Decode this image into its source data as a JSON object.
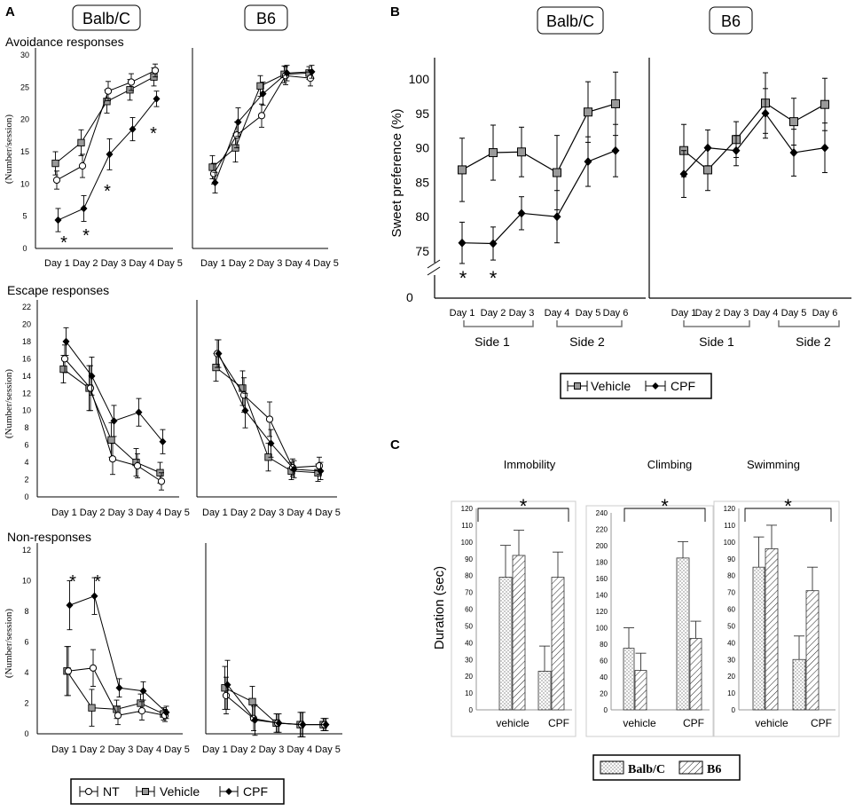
{
  "panel_labels": {
    "a": "A",
    "b": "B",
    "c": "C"
  },
  "strain_labels": {
    "balb": "Balb/C",
    "b6": "B6"
  },
  "panel_a": {
    "subtitles": [
      "Avoidance responses",
      "Escape responses",
      "Non-responses"
    ],
    "ylabel": "(Number/session)",
    "x_axis_labels": "Day 1 Day 2 Day 3 Day 4 Day 5"
  },
  "panel_b": {
    "ylabel": "Sweet preference (%)",
    "axis_break_zero": "0",
    "side_labels": [
      "Side 1",
      "Side 2"
    ]
  },
  "panel_c": {
    "ylabel": "Duration (sec)",
    "groups": [
      "vehicle",
      "CPF"
    ]
  },
  "legend_a": {
    "items": [
      "NT",
      "Vehicle",
      "CPF"
    ]
  },
  "legend_b": {
    "items": [
      "Vehicle",
      "CPF"
    ]
  },
  "legend_c": {
    "items": [
      "Balb/C",
      "B6"
    ]
  },
  "significance_mark": "*",
  "colors": {
    "vehicle_fill": "#999999",
    "line": "#000000"
  },
  "chart_data": [
    {
      "id": "A-avoid-balb",
      "type": "line",
      "title": "Avoidance responses",
      "strain": "Balb/C",
      "xlabel": "",
      "ylabel": "(Number/session)",
      "categories": [
        "Day 1",
        "Day 2",
        "Day 3",
        "Day 4",
        "Day 5"
      ],
      "ylim": [
        0,
        30
      ],
      "yticks": [
        0,
        5,
        10,
        15,
        20,
        25,
        30
      ],
      "series": [
        {
          "name": "NT",
          "values": [
            10.6,
            12.8,
            24.4,
            25.8,
            27.6
          ],
          "errors": [
            1.4,
            1.8,
            1.5,
            1.3,
            1.0
          ]
        },
        {
          "name": "Vehicle",
          "values": [
            13.2,
            16.4,
            22.8,
            24.6,
            26.6
          ],
          "errors": [
            1.8,
            2.0,
            1.8,
            1.6,
            1.4
          ]
        },
        {
          "name": "CPF",
          "values": [
            4.4,
            6.2,
            14.6,
            18.5,
            23.2
          ],
          "errors": [
            1.8,
            2.0,
            2.4,
            1.8,
            1.2
          ]
        }
      ],
      "significance": [
        "Day 1",
        "Day 2",
        "Day 3",
        "Day 5"
      ]
    },
    {
      "id": "A-avoid-b6",
      "type": "line",
      "title": "Avoidance responses",
      "strain": "B6",
      "xlabel": "",
      "ylabel": "(Number/session)",
      "categories": [
        "Day 1",
        "Day 2",
        "Day 3",
        "Day 4",
        "Day 5"
      ],
      "ylim": [
        0,
        30
      ],
      "series": [
        {
          "name": "NT",
          "values": [
            11.6,
            17.6,
            20.6,
            26.8,
            26.4
          ],
          "errors": [
            1.6,
            2.0,
            1.8,
            1.4,
            1.2
          ]
        },
        {
          "name": "Vehicle",
          "values": [
            12.6,
            15.6,
            25.2,
            27.0,
            27.2
          ],
          "errors": [
            1.8,
            2.2,
            1.6,
            1.3,
            1.0
          ]
        },
        {
          "name": "CPF",
          "values": [
            10.2,
            19.6,
            24.0,
            27.2,
            27.4
          ],
          "errors": [
            1.6,
            2.2,
            1.8,
            1.2,
            1.0
          ]
        }
      ]
    },
    {
      "id": "A-escape-balb",
      "type": "line",
      "title": "Escape responses",
      "strain": "Balb/C",
      "xlabel": "",
      "ylabel": "(Number/session)",
      "categories": [
        "Day 1",
        "Day 2",
        "Day 3",
        "Day 4",
        "Day 5"
      ],
      "ylim": [
        0,
        22
      ],
      "yticks": [
        0,
        2,
        4,
        6,
        8,
        10,
        12,
        14,
        16,
        18,
        20,
        22
      ],
      "series": [
        {
          "name": "NT",
          "values": [
            16.0,
            12.6,
            4.4,
            3.6,
            1.8
          ],
          "errors": [
            1.6,
            2.6,
            1.8,
            1.4,
            1.0
          ]
        },
        {
          "name": "Vehicle",
          "values": [
            14.8,
            12.6,
            6.6,
            4.0,
            2.8
          ],
          "errors": [
            1.6,
            2.6,
            2.0,
            1.6,
            1.2
          ]
        },
        {
          "name": "CPF",
          "values": [
            18.0,
            14.0,
            8.8,
            9.8,
            6.4
          ],
          "errors": [
            1.6,
            2.2,
            1.8,
            1.6,
            1.4
          ]
        }
      ]
    },
    {
      "id": "A-escape-b6",
      "type": "line",
      "title": "Escape responses",
      "strain": "B6",
      "xlabel": "",
      "ylabel": "(Number/session)",
      "categories": [
        "Day 1",
        "Day 2",
        "Day 3",
        "Day 4",
        "Day 5"
      ],
      "ylim": [
        0,
        22
      ],
      "series": [
        {
          "name": "NT",
          "values": [
            16.6,
            11.8,
            9.0,
            3.4,
            3.6
          ],
          "errors": [
            1.6,
            2.0,
            2.0,
            1.0,
            1.0
          ]
        },
        {
          "name": "Vehicle",
          "values": [
            15.0,
            12.6,
            4.6,
            3.0,
            2.8
          ],
          "errors": [
            1.6,
            2.0,
            1.6,
            1.0,
            1.0
          ]
        },
        {
          "name": "CPF",
          "values": [
            16.6,
            10.0,
            6.2,
            3.2,
            3.0
          ],
          "errors": [
            1.6,
            2.0,
            1.6,
            1.0,
            1.0
          ]
        }
      ]
    },
    {
      "id": "A-non-balb",
      "type": "line",
      "title": "Non-responses",
      "strain": "Balb/C",
      "xlabel": "",
      "ylabel": "(Number/session)",
      "categories": [
        "Day 1",
        "Day 2",
        "Day 3",
        "Day 4",
        "Day 5"
      ],
      "ylim": [
        0,
        12
      ],
      "yticks": [
        0,
        2,
        4,
        6,
        8,
        10,
        12
      ],
      "series": [
        {
          "name": "NT",
          "values": [
            4.1,
            4.3,
            1.2,
            1.5,
            1.2
          ],
          "errors": [
            1.6,
            1.2,
            0.6,
            0.6,
            0.4
          ]
        },
        {
          "name": "Vehicle",
          "values": [
            4.1,
            1.7,
            1.6,
            2.0,
            1.3
          ],
          "errors": [
            1.6,
            1.2,
            0.6,
            0.6,
            0.4
          ]
        },
        {
          "name": "CPF",
          "values": [
            8.4,
            9.0,
            3.0,
            2.8,
            1.4
          ],
          "errors": [
            1.6,
            1.2,
            0.6,
            0.6,
            0.4
          ]
        }
      ],
      "significance": [
        "Day 1",
        "Day 2"
      ]
    },
    {
      "id": "A-non-b6",
      "type": "line",
      "title": "Non-responses",
      "strain": "B6",
      "xlabel": "",
      "ylabel": "(Number/session)",
      "categories": [
        "Day 1",
        "Day 2",
        "Day 3",
        "Day 4",
        "Day 5"
      ],
      "ylim": [
        0,
        12
      ],
      "series": [
        {
          "name": "NT",
          "values": [
            2.5,
            1.0,
            0.7,
            0.6,
            0.6
          ],
          "errors": [
            1.2,
            0.8,
            0.6,
            0.8,
            0.4
          ]
        },
        {
          "name": "Vehicle",
          "values": [
            3.0,
            2.1,
            0.7,
            0.6,
            0.6
          ],
          "errors": [
            1.4,
            1.0,
            0.6,
            0.8,
            0.4
          ]
        },
        {
          "name": "CPF",
          "values": [
            3.2,
            0.9,
            0.7,
            0.6,
            0.6
          ],
          "errors": [
            1.6,
            1.0,
            0.6,
            0.8,
            0.4
          ]
        }
      ]
    },
    {
      "id": "B-balb",
      "type": "line",
      "title": "",
      "strain": "Balb/C",
      "xlabel": "",
      "ylabel": "Sweet preference (%)",
      "categories": [
        "Day 1",
        "Day 2",
        "Day 3",
        "Day 4",
        "Day 5",
        "Day 6"
      ],
      "ylim": [
        72,
        103
      ],
      "yticks": [
        75,
        80,
        85,
        90,
        95,
        100
      ],
      "series": [
        {
          "name": "Vehicle",
          "values": [
            86.8,
            89.3,
            89.4,
            86.4,
            95.2,
            96.4
          ],
          "errors": [
            4.6,
            4.0,
            3.6,
            5.4,
            4.4,
            4.6
          ]
        },
        {
          "name": "CPF",
          "values": [
            76.2,
            76.1,
            80.5,
            80.0,
            88.0,
            89.6
          ],
          "errors": [
            3.0,
            2.4,
            2.4,
            3.8,
            3.6,
            3.8
          ]
        }
      ],
      "significance": [
        "Day 1",
        "Day 2"
      ]
    },
    {
      "id": "B-b6",
      "type": "line",
      "title": "",
      "strain": "B6",
      "xlabel": "",
      "ylabel": "Sweet preference (%)",
      "categories": [
        "Day 1",
        "Day 2",
        "Day 3",
        "Day 4",
        "Day 5",
        "Day 6"
      ],
      "ylim": [
        72,
        103
      ],
      "series": [
        {
          "name": "Vehicle",
          "values": [
            89.6,
            86.8,
            91.2,
            96.5,
            93.8,
            96.3
          ],
          "errors": [
            3.8,
            3.0,
            2.6,
            4.4,
            3.4,
            3.8
          ]
        },
        {
          "name": "CPF",
          "values": [
            86.2,
            90.0,
            89.6,
            95.0,
            89.3,
            90.0
          ],
          "errors": [
            3.4,
            2.6,
            2.2,
            3.6,
            3.4,
            3.6
          ]
        }
      ]
    },
    {
      "id": "C-immobility",
      "type": "bar",
      "title": "Immobility",
      "xlabel": "",
      "ylabel": "Duration (sec)",
      "categories": [
        "vehicle",
        "CPF"
      ],
      "ylim": [
        0,
        120
      ],
      "yticks": [
        0,
        10,
        20,
        30,
        40,
        50,
        60,
        70,
        80,
        90,
        100,
        110,
        120
      ],
      "series": [
        {
          "name": "Balb/C",
          "values": [
            79,
            23
          ],
          "errors": [
            19,
            15
          ]
        },
        {
          "name": "B6",
          "values": [
            92,
            79
          ],
          "errors": [
            15,
            15
          ]
        }
      ],
      "significance": "vehicle vs CPF"
    },
    {
      "id": "C-climbing",
      "type": "bar",
      "title": "Climbing",
      "xlabel": "",
      "ylabel": "Duration (sec)",
      "categories": [
        "vehicle",
        "CPF"
      ],
      "ylim": [
        0,
        240
      ],
      "yticks": [
        0,
        20,
        40,
        60,
        80,
        100,
        120,
        140,
        160,
        180,
        200,
        220,
        240
      ],
      "series": [
        {
          "name": "Balb/C",
          "values": [
            75,
            185
          ],
          "errors": [
            25,
            20
          ]
        },
        {
          "name": "B6",
          "values": [
            48,
            87
          ],
          "errors": [
            21,
            21
          ]
        }
      ],
      "significance": "vehicle vs CPF"
    },
    {
      "id": "C-swimming",
      "type": "bar",
      "title": "Swimming",
      "xlabel": "",
      "ylabel": "Duration (sec)",
      "categories": [
        "vehicle",
        "CPF"
      ],
      "ylim": [
        0,
        120
      ],
      "yticks": [
        0,
        10,
        20,
        30,
        40,
        50,
        60,
        70,
        80,
        90,
        100,
        110,
        120
      ],
      "series": [
        {
          "name": "Balb/C",
          "values": [
            85,
            30
          ],
          "errors": [
            18,
            14
          ]
        },
        {
          "name": "B6",
          "values": [
            96,
            71
          ],
          "errors": [
            14,
            14
          ]
        }
      ],
      "significance": "vehicle vs CPF"
    }
  ]
}
